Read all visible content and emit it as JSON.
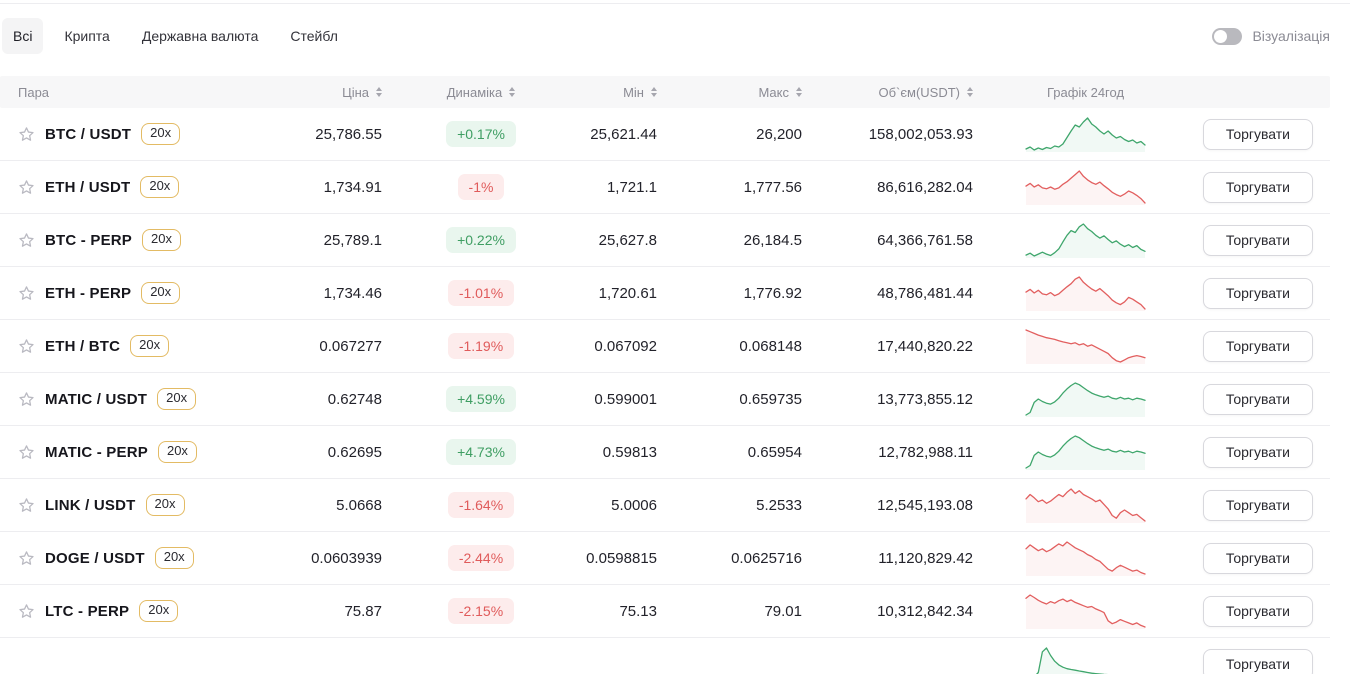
{
  "filters": {
    "tabs": [
      {
        "label": "Всі",
        "active": true
      },
      {
        "label": "Крипта",
        "active": false
      },
      {
        "label": "Державна валюта",
        "active": false
      },
      {
        "label": "Стейбл",
        "active": false
      }
    ]
  },
  "visualization_toggle": {
    "label": "Візуалізація",
    "on": false
  },
  "table": {
    "columns": [
      {
        "key": "pair",
        "label": "Пара",
        "sortable": false,
        "align": "left"
      },
      {
        "key": "price",
        "label": "Ціна",
        "sortable": true,
        "align": "right"
      },
      {
        "key": "change",
        "label": "Динаміка",
        "sortable": true,
        "align": "center"
      },
      {
        "key": "min",
        "label": "Мін",
        "sortable": true,
        "align": "right"
      },
      {
        "key": "max",
        "label": "Макс",
        "sortable": true,
        "align": "right"
      },
      {
        "key": "volume",
        "label": "Об`єм(USDT)",
        "sortable": true,
        "align": "right"
      },
      {
        "key": "chart",
        "label": "Графік 24год",
        "sortable": false,
        "align": "center"
      }
    ],
    "trade_button_label": "Торгувати",
    "rows": [
      {
        "pair": "BTC / USDT",
        "leverage": "20x",
        "price": "25,786.55",
        "change": "+0.17%",
        "trend": "up",
        "min": "25,621.44",
        "max": "26,200",
        "volume": "158,002,053.93",
        "spark": [
          22,
          26,
          20,
          24,
          21,
          25,
          23,
          28,
          26,
          32,
          45,
          58,
          70,
          66,
          76,
          84,
          72,
          66,
          58,
          52,
          58,
          50,
          44,
          47,
          41,
          37,
          40,
          34,
          37,
          30
        ]
      },
      {
        "pair": "ETH / USDT",
        "leverage": "20x",
        "price": "1,734.91",
        "change": "-1%",
        "trend": "down",
        "min": "1,721.1",
        "max": "1,777.56",
        "volume": "86,616,282.04",
        "spark": [
          52,
          58,
          50,
          55,
          48,
          46,
          50,
          45,
          48,
          56,
          62,
          70,
          78,
          86,
          74,
          66,
          60,
          56,
          61,
          53,
          46,
          38,
          33,
          29,
          34,
          41,
          37,
          31,
          24,
          14
        ]
      },
      {
        "pair": "BTC - PERP",
        "leverage": "20x",
        "price": "25,789.1",
        "change": "+0.22%",
        "trend": "up",
        "min": "25,627.8",
        "max": "26,184.5",
        "volume": "64,366,761.58",
        "spark": [
          20,
          24,
          18,
          22,
          26,
          22,
          19,
          25,
          33,
          48,
          62,
          72,
          68,
          80,
          86,
          76,
          70,
          62,
          56,
          61,
          53,
          46,
          50,
          43,
          38,
          42,
          36,
          40,
          32,
          28
        ]
      },
      {
        "pair": "ETH - PERP",
        "leverage": "20x",
        "price": "1,734.46",
        "change": "-1.01%",
        "trend": "down",
        "min": "1,720.61",
        "max": "1,776.92",
        "volume": "48,786,481.44",
        "spark": [
          54,
          60,
          52,
          58,
          50,
          48,
          53,
          46,
          50,
          58,
          66,
          73,
          83,
          88,
          76,
          68,
          61,
          56,
          62,
          54,
          46,
          36,
          30,
          26,
          32,
          42,
          38,
          32,
          26,
          16
        ]
      },
      {
        "pair": "ETH / BTC",
        "leverage": "20x",
        "price": "0.067277",
        "change": "-1.19%",
        "trend": "down",
        "min": "0.067092",
        "max": "0.068148",
        "volume": "17,440,820.22",
        "spark": [
          88,
          84,
          80,
          76,
          73,
          70,
          68,
          66,
          63,
          60,
          58,
          56,
          58,
          53,
          56,
          50,
          53,
          48,
          43,
          38,
          33,
          23,
          16,
          13,
          18,
          23,
          26,
          28,
          26,
          23
        ]
      },
      {
        "pair": "MATIC / USDT",
        "leverage": "20x",
        "price": "0.62748",
        "change": "+4.59%",
        "trend": "up",
        "min": "0.599001",
        "max": "0.659735",
        "volume": "13,773,855.12",
        "spark": [
          8,
          14,
          38,
          46,
          40,
          36,
          34,
          39,
          48,
          60,
          70,
          78,
          84,
          80,
          73,
          66,
          60,
          56,
          53,
          50,
          53,
          48,
          46,
          50,
          46,
          48,
          44,
          48,
          46,
          43
        ]
      },
      {
        "pair": "MATIC - PERP",
        "leverage": "20x",
        "price": "0.62695",
        "change": "+4.73%",
        "trend": "up",
        "min": "0.59813",
        "max": "0.65954",
        "volume": "12,782,988.11",
        "spark": [
          6,
          12,
          36,
          44,
          38,
          34,
          32,
          37,
          46,
          58,
          68,
          76,
          82,
          78,
          71,
          64,
          58,
          54,
          51,
          48,
          51,
          46,
          44,
          48,
          44,
          46,
          42,
          46,
          44,
          41
        ]
      },
      {
        "pair": "LINK / USDT",
        "leverage": "20x",
        "price": "5.0668",
        "change": "-1.64%",
        "trend": "down",
        "min": "5.0006",
        "max": "5.2533",
        "volume": "12,545,193.08",
        "spark": [
          58,
          66,
          60,
          53,
          56,
          50,
          54,
          60,
          66,
          62,
          70,
          76,
          68,
          73,
          66,
          62,
          58,
          53,
          56,
          48,
          40,
          28,
          23,
          33,
          38,
          33,
          28,
          30,
          24,
          18
        ]
      },
      {
        "pair": "DOGE / USDT",
        "leverage": "20x",
        "price": "0.0603939",
        "change": "-2.44%",
        "trend": "down",
        "min": "0.0598815",
        "max": "0.0625716",
        "volume": "11,120,829.42",
        "spark": [
          62,
          70,
          64,
          58,
          62,
          56,
          60,
          66,
          72,
          68,
          76,
          70,
          64,
          60,
          56,
          50,
          46,
          40,
          36,
          28,
          20,
          16,
          23,
          28,
          24,
          20,
          16,
          18,
          13,
          10
        ]
      },
      {
        "pair": "LTC - PERP",
        "leverage": "20x",
        "price": "75.87",
        "change": "-2.15%",
        "trend": "down",
        "min": "75.13",
        "max": "79.01",
        "volume": "10,312,842.34",
        "spark": [
          78,
          86,
          80,
          73,
          68,
          64,
          70,
          66,
          72,
          76,
          70,
          74,
          68,
          64,
          60,
          56,
          58,
          52,
          48,
          43,
          23,
          16,
          20,
          26,
          22,
          18,
          14,
          18,
          12,
          8
        ]
      },
      {
        "pair": "",
        "leverage": "",
        "price": "",
        "change": "",
        "trend": "up",
        "min": "",
        "max": "",
        "volume": "",
        "spark": [
          10,
          14,
          18,
          30,
          85,
          95,
          75,
          60,
          50,
          44,
          40,
          38,
          36,
          34,
          32,
          30,
          28,
          27,
          26,
          25,
          24,
          23,
          22,
          21,
          20,
          19,
          18,
          17,
          16,
          15
        ],
        "partial": true
      }
    ]
  },
  "colors": {
    "up_line": "#3fa66c",
    "down_line": "#e25f5f",
    "up_badge_bg": "#e9f6ee",
    "up_badge_text": "#3f9e63",
    "down_badge_bg": "#fdecec",
    "down_badge_text": "#e05b5b",
    "leverage_border": "#e3bb64",
    "header_bg": "#f7f7f8"
  }
}
